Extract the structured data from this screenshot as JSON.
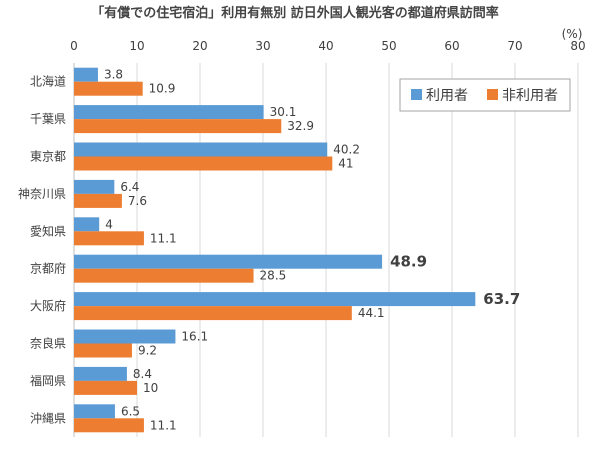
{
  "chart_data": {
    "type": "bar",
    "orientation": "horizontal",
    "title": "「有償での住宅宿泊」利用有無別 訪日外国人観光客の都道府県訪問率",
    "unit_label": "(%)",
    "xlim": [
      0,
      80
    ],
    "x_ticks": [
      0,
      10,
      20,
      30,
      40,
      50,
      60,
      70,
      80
    ],
    "categories": [
      "北海道",
      "千葉県",
      "東京都",
      "神奈川県",
      "愛知県",
      "京都府",
      "大阪府",
      "奈良県",
      "福岡県",
      "沖縄県"
    ],
    "series": [
      {
        "name": "利用者",
        "color": "#5b9bd5",
        "values": [
          3.8,
          30.1,
          40.2,
          6.4,
          4,
          48.9,
          63.7,
          16.1,
          8.4,
          6.5
        ]
      },
      {
        "name": "非利用者",
        "color": "#ed7d31",
        "values": [
          10.9,
          32.9,
          41,
          7.6,
          11.1,
          28.5,
          44.1,
          9.2,
          10,
          11.1
        ]
      }
    ],
    "highlight": {
      "series": 0,
      "categories": [
        5,
        6
      ],
      "color": "#c0006a"
    },
    "grid": true,
    "legend": "top-right"
  }
}
